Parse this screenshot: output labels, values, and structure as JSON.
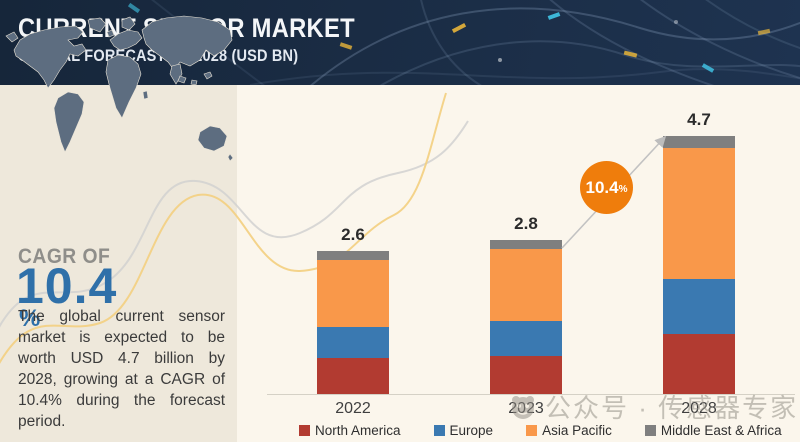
{
  "header": {
    "title": "CURRENT SENSOR MARKET",
    "subtitle": "GLOBAL FORECAST TO 2028 (USD BN)"
  },
  "sidebar": {
    "cagr_label": "CAGR OF",
    "cagr_value": "10.4",
    "cagr_unit": "%",
    "description": "The global current sensor market is expected to be worth USD 4.7 billion by 2028, growing at a CAGR of 10.4% during the forecast period."
  },
  "chart_data": {
    "type": "bar",
    "stacked": true,
    "title": "Current Sensor Market, Global Forecast to 2028 (USD BN)",
    "categories": [
      "2022",
      "2023",
      "2028"
    ],
    "series": [
      {
        "name": "North America",
        "color": "#b23b31",
        "values": [
          0.65,
          0.7,
          1.09
        ]
      },
      {
        "name": "Europe",
        "color": "#3a79b1",
        "values": [
          0.57,
          0.63,
          1.0
        ]
      },
      {
        "name": "Asia Pacific",
        "color": "#f9984a",
        "values": [
          1.22,
          1.31,
          2.39
        ]
      },
      {
        "name": "Middle East & Africa",
        "color": "#7f7f7f",
        "values": [
          0.16,
          0.16,
          0.22
        ]
      }
    ],
    "totals": [
      "2.6",
      "2.8",
      "4.7"
    ],
    "growth_annotation": {
      "value": "10.4",
      "unit": "%"
    },
    "ylim": [
      0,
      5
    ],
    "grid": false,
    "legend_position": "bottom"
  },
  "watermark": {
    "text": "公众号 · 传感器专家网"
  }
}
